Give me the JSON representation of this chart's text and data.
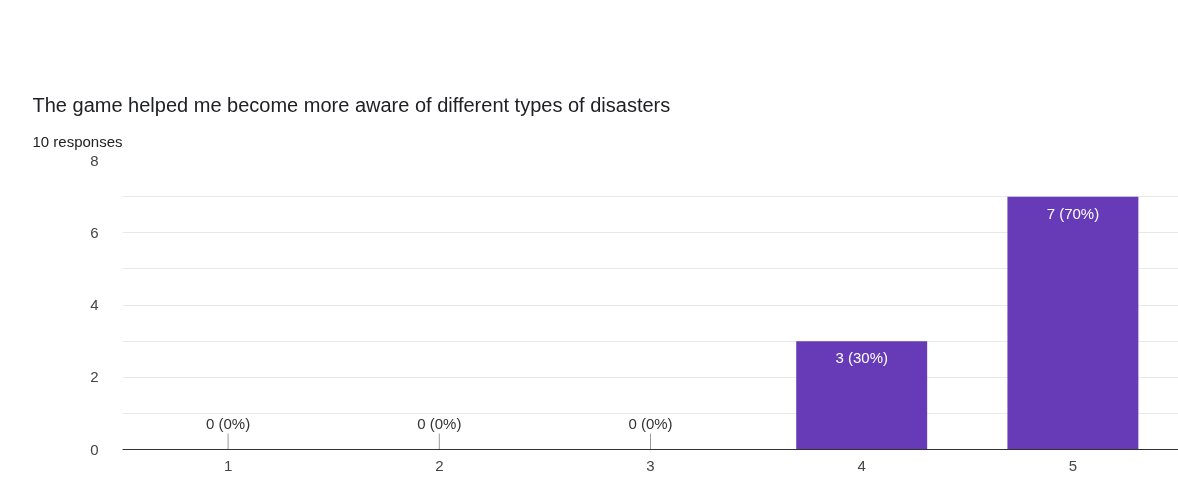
{
  "chart_data": {
    "type": "bar",
    "title": "The game helped me become more aware of different types of disasters",
    "subtitle": "10 responses",
    "categories": [
      "1",
      "2",
      "3",
      "4",
      "5"
    ],
    "values": [
      0,
      0,
      0,
      3,
      7
    ],
    "color": "#673ab7",
    "value_labels": [
      "0 (0%)",
      "0 (0%)",
      "0 (0%)",
      "3 (30%)",
      "7 (70%)"
    ],
    "ylim": [
      0,
      8
    ],
    "yticks": [
      0,
      {
        "value": 1,
        "label": null
      },
      2,
      {
        "value": 3,
        "label": null
      },
      4,
      {
        "value": 5,
        "label": null
      },
      6,
      {
        "value": 7,
        "label": null
      },
      8
    ],
    "grid": "y"
  }
}
